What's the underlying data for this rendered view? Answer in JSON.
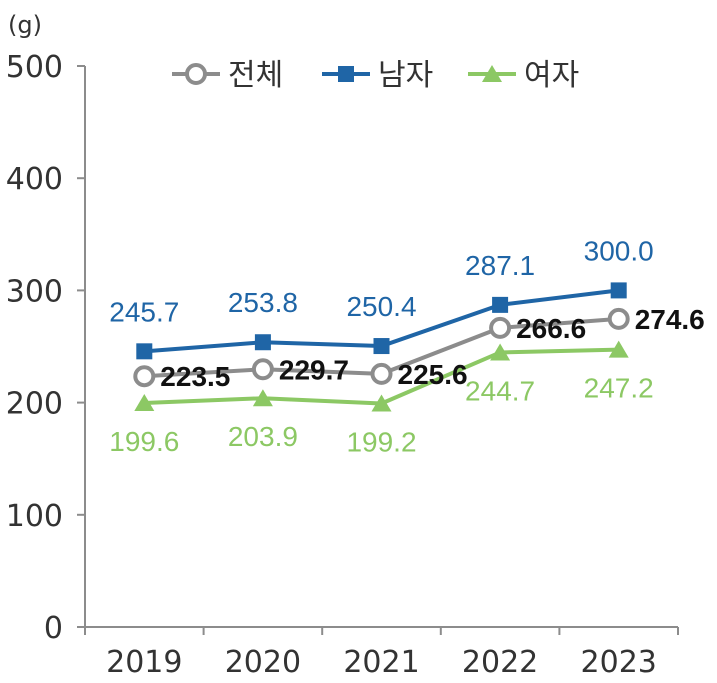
{
  "chart_data": {
    "type": "line",
    "unit_label": "(g)",
    "categories": [
      "2019",
      "2020",
      "2021",
      "2022",
      "2023"
    ],
    "yticks": [
      "0",
      "100",
      "200",
      "300",
      "400",
      "500"
    ],
    "ylim": [
      0,
      500
    ],
    "grid": false,
    "legend_position": "top",
    "series": [
      {
        "name": "전체",
        "values": [
          223.5,
          229.7,
          225.6,
          266.6,
          274.6
        ],
        "labels": [
          "223.5",
          "229.7",
          "225.6",
          "266.6",
          "274.6"
        ],
        "color": "#8c8c8c",
        "marker": "hollow-circle"
      },
      {
        "name": "남자",
        "values": [
          245.7,
          253.8,
          250.4,
          287.1,
          300.0
        ],
        "labels": [
          "245.7",
          "253.8",
          "250.4",
          "287.1",
          "300.0"
        ],
        "color": "#1f65a6",
        "marker": "square"
      },
      {
        "name": "여자",
        "values": [
          199.6,
          203.9,
          199.2,
          244.7,
          247.2
        ],
        "labels": [
          "199.6",
          "203.9",
          "199.2",
          "244.7",
          "247.2"
        ],
        "color": "#8cc864",
        "marker": "triangle"
      }
    ]
  }
}
